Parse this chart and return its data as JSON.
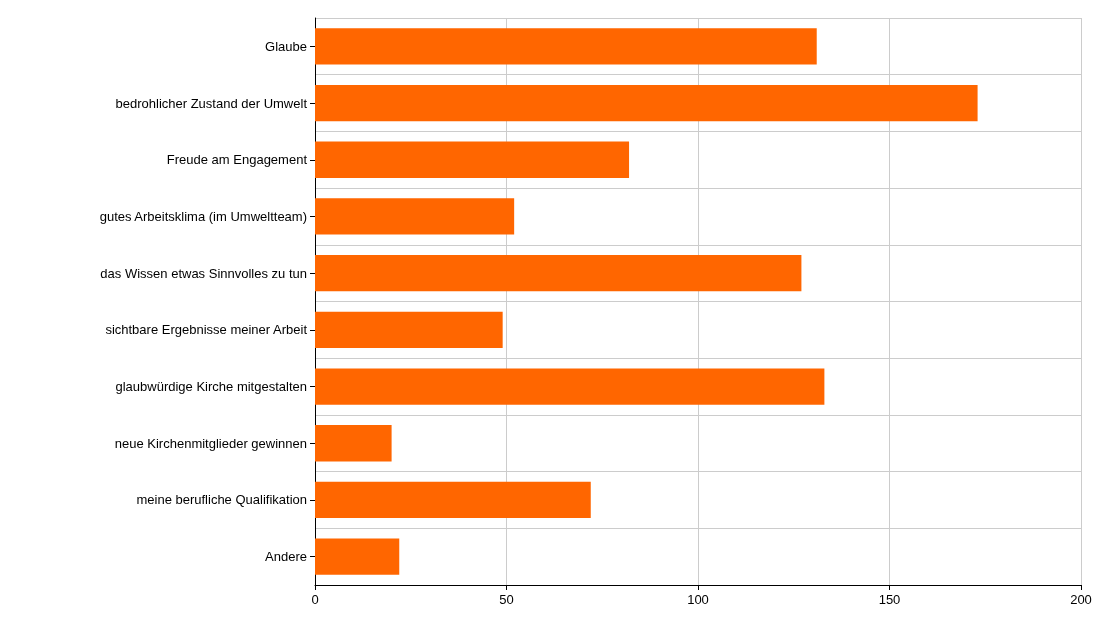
{
  "chart_data": {
    "type": "bar",
    "orientation": "horizontal",
    "categories": [
      "Glaube",
      "bedrohlicher Zustand der Umwelt",
      "Freude am Engagement",
      "gutes Arbeitsklima (im Umweltteam)",
      "das Wissen etwas Sinnvolles zu tun",
      "sichtbare Ergebnisse meiner Arbeit",
      "glaubwürdige Kirche mitgestalten",
      "neue Kirchenmitglieder gewinnen",
      "meine berufliche Qualifikation",
      "Andere"
    ],
    "values": [
      131,
      173,
      82,
      52,
      127,
      49,
      133,
      20,
      72,
      22
    ],
    "color": "#ff6600",
    "xlim": [
      0,
      200
    ],
    "xticks": [
      0,
      50,
      100,
      150,
      200
    ],
    "grid": true
  }
}
